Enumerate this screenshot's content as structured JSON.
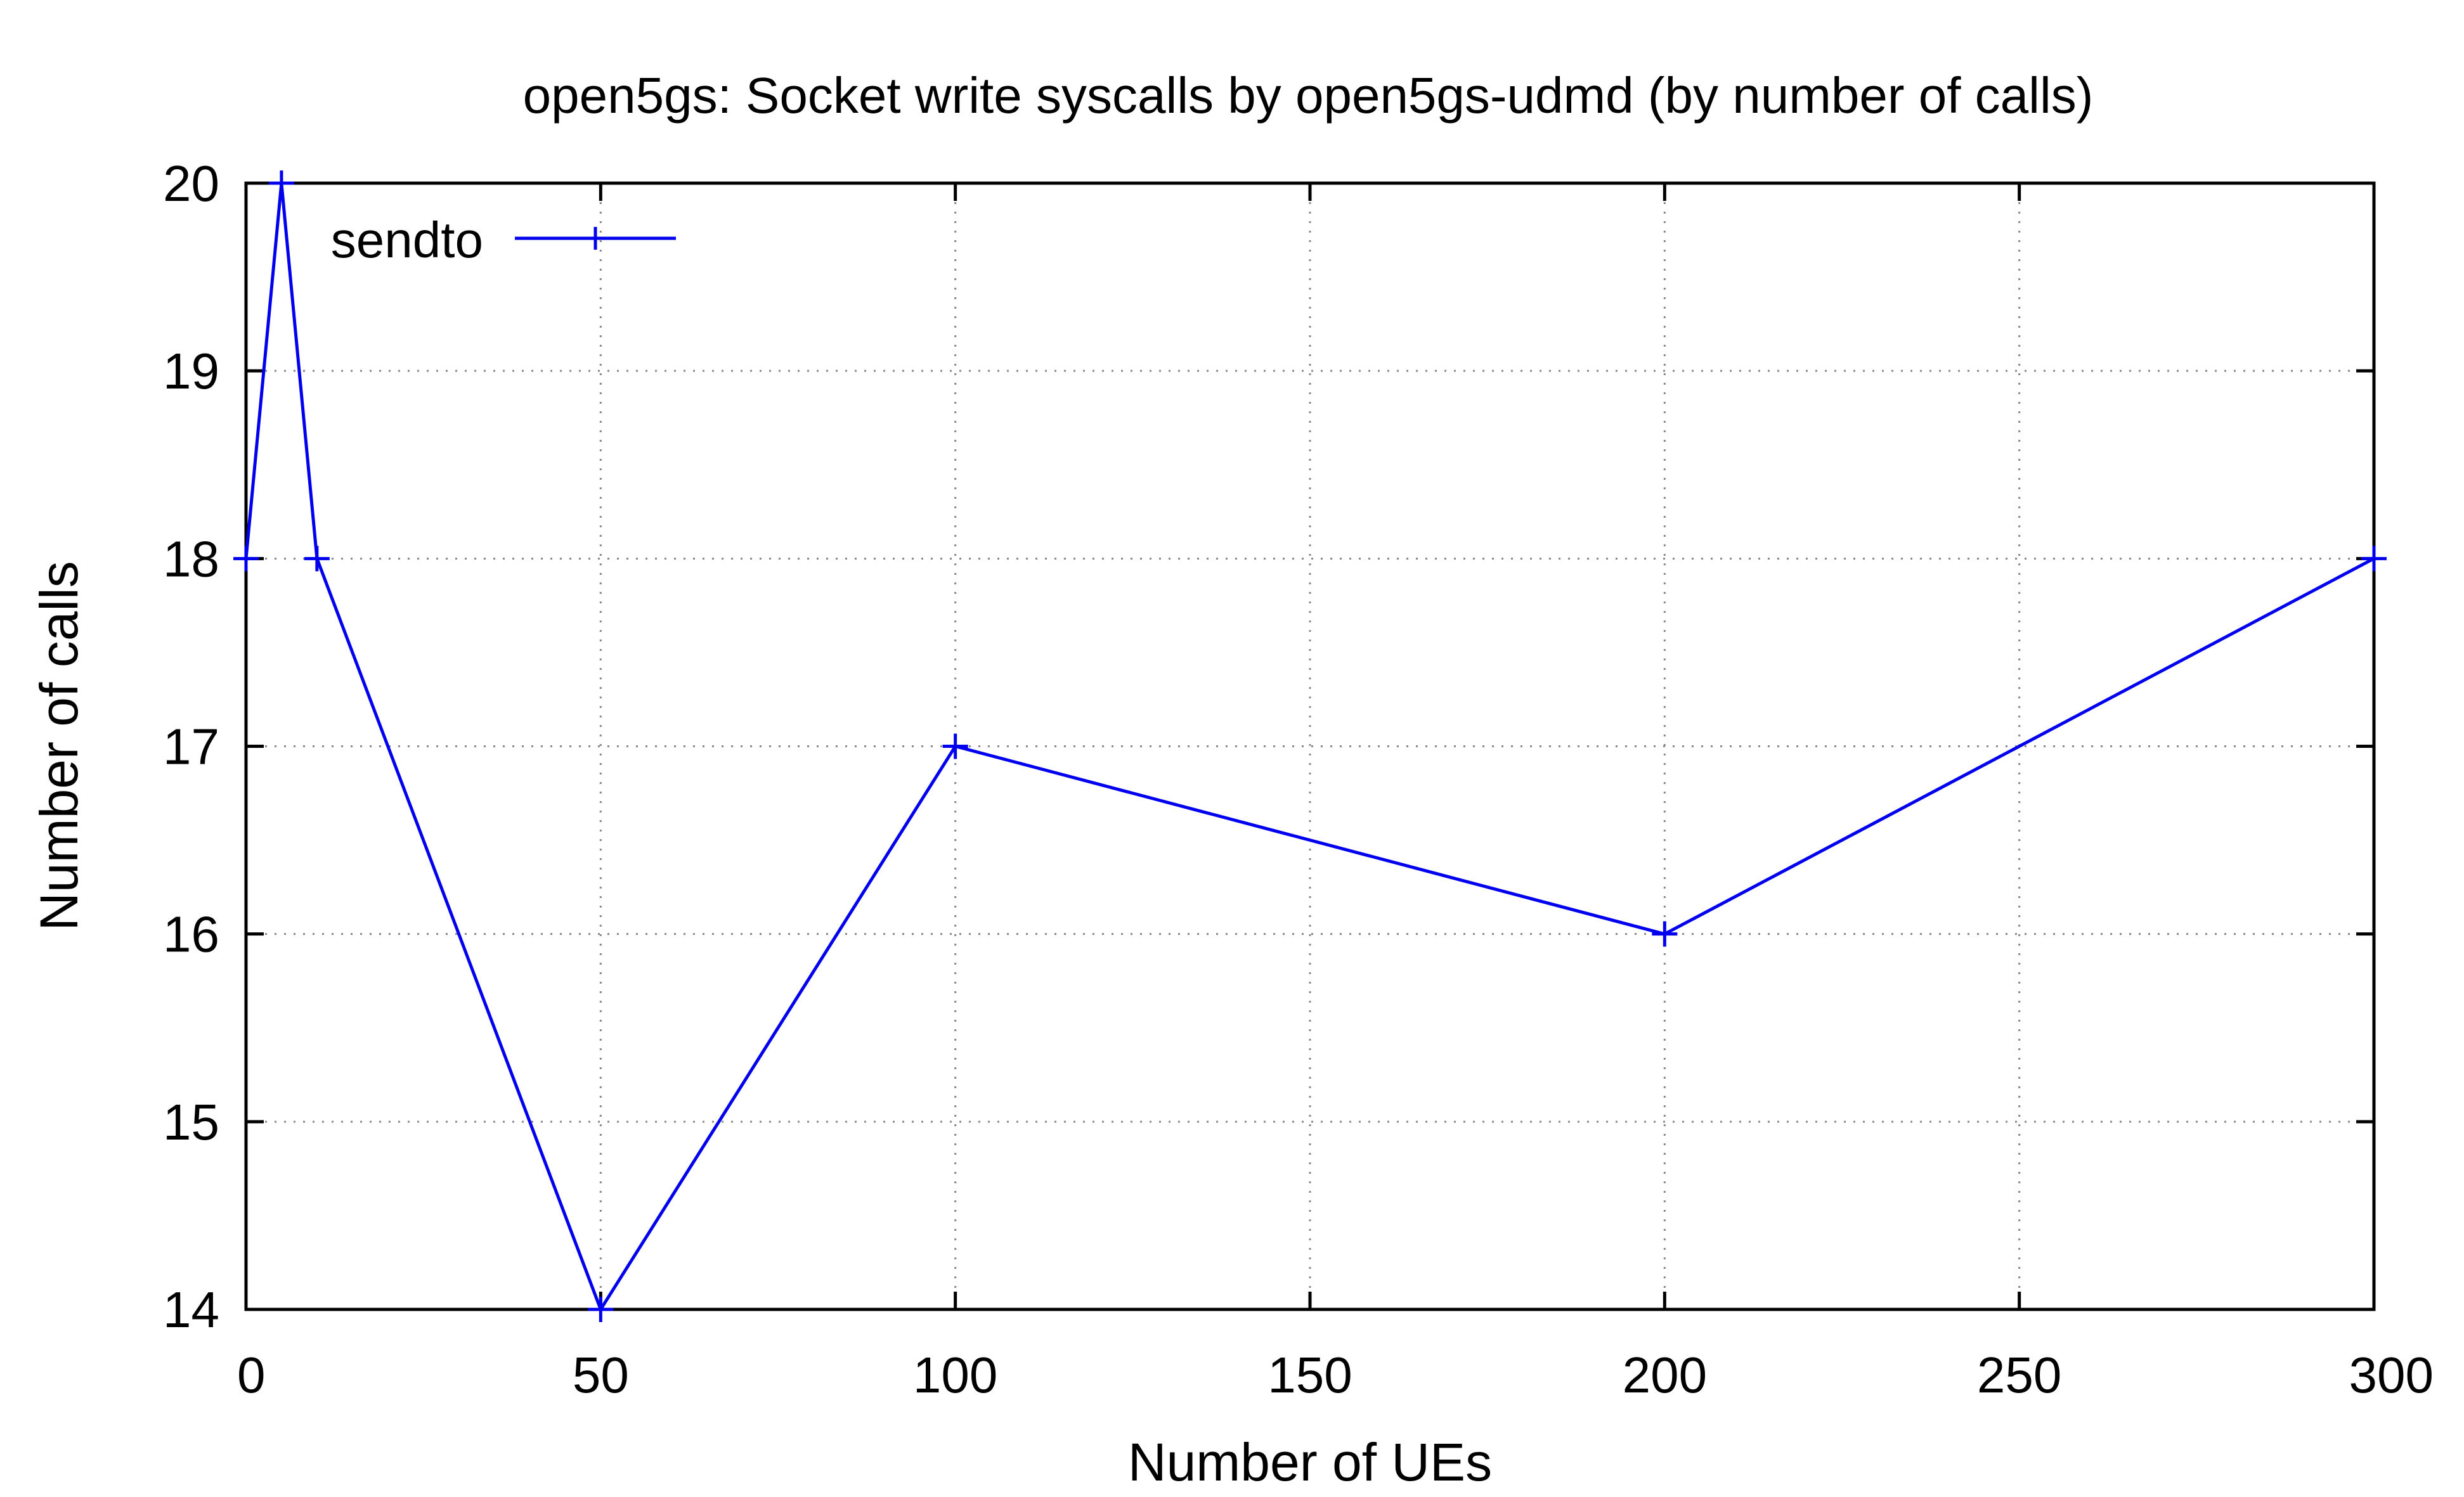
{
  "chart_data": {
    "type": "line",
    "title": "open5gs: Socket write syscalls by open5gs-udmd (by number of calls)",
    "xlabel": "Number of UEs",
    "ylabel": "Number of calls",
    "xlim": [
      0,
      300
    ],
    "ylim": [
      14,
      20
    ],
    "xticks": [
      0,
      50,
      100,
      150,
      200,
      250,
      300
    ],
    "yticks": [
      14,
      15,
      16,
      17,
      18,
      19,
      20
    ],
    "grid": true,
    "legend_position": "top-left",
    "series": [
      {
        "name": "sendto",
        "color": "#0000ee",
        "marker": "plus",
        "x": [
          0,
          5,
          10,
          50,
          100,
          200,
          300
        ],
        "y": [
          18,
          20,
          18,
          14,
          17,
          16,
          18
        ]
      }
    ]
  }
}
